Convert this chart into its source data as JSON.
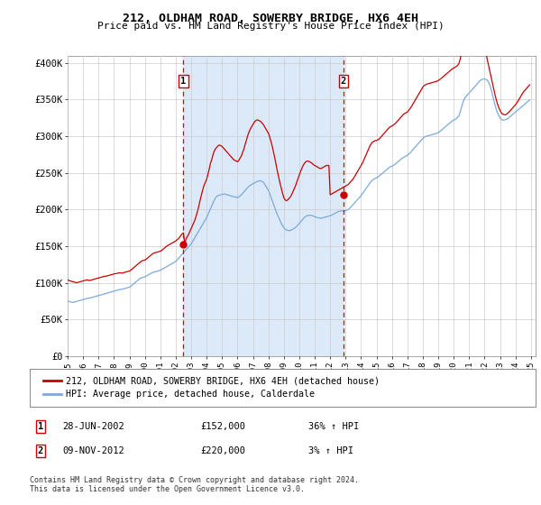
{
  "title": "212, OLDHAM ROAD, SOWERBY BRIDGE, HX6 4EH",
  "subtitle": "Price paid vs. HM Land Registry's House Price Index (HPI)",
  "ylabel_ticks": [
    "£0",
    "£50K",
    "£100K",
    "£150K",
    "£200K",
    "£250K",
    "£300K",
    "£350K",
    "£400K"
  ],
  "ytick_values": [
    0,
    50000,
    100000,
    150000,
    200000,
    250000,
    300000,
    350000,
    400000
  ],
  "ylim": [
    0,
    410000
  ],
  "xlim_start": 1995.0,
  "xlim_end": 2025.3,
  "plot_bg_color": "#ffffff",
  "shade_color": "#dce9f8",
  "hpi_color": "#7aaadd",
  "price_color": "#cc0000",
  "sale1_x": 2002.49,
  "sale1_y": 152000,
  "sale2_x": 2012.86,
  "sale2_y": 220000,
  "legend_label1": "212, OLDHAM ROAD, SOWERBY BRIDGE, HX6 4EH (detached house)",
  "legend_label2": "HPI: Average price, detached house, Calderdale",
  "table_rows": [
    {
      "num": "1",
      "date": "28-JUN-2002",
      "price": "£152,000",
      "change": "36% ↑ HPI"
    },
    {
      "num": "2",
      "date": "09-NOV-2012",
      "price": "£220,000",
      "change": "3% ↑ HPI"
    }
  ],
  "footer": "Contains HM Land Registry data © Crown copyright and database right 2024.\nThis data is licensed under the Open Government Licence v3.0.",
  "vline1_x": 2002.49,
  "vline2_x": 2012.86,
  "hpi_data_x": [
    1995.0,
    1995.083,
    1995.167,
    1995.25,
    1995.333,
    1995.417,
    1995.5,
    1995.583,
    1995.667,
    1995.75,
    1995.833,
    1995.917,
    1996.0,
    1996.083,
    1996.167,
    1996.25,
    1996.333,
    1996.417,
    1996.5,
    1996.583,
    1996.667,
    1996.75,
    1996.833,
    1996.917,
    1997.0,
    1997.083,
    1997.167,
    1997.25,
    1997.333,
    1997.417,
    1997.5,
    1997.583,
    1997.667,
    1997.75,
    1997.833,
    1997.917,
    1998.0,
    1998.083,
    1998.167,
    1998.25,
    1998.333,
    1998.417,
    1998.5,
    1998.583,
    1998.667,
    1998.75,
    1998.833,
    1998.917,
    1999.0,
    1999.083,
    1999.167,
    1999.25,
    1999.333,
    1999.417,
    1999.5,
    1999.583,
    1999.667,
    1999.75,
    1999.833,
    1999.917,
    2000.0,
    2000.083,
    2000.167,
    2000.25,
    2000.333,
    2000.417,
    2000.5,
    2000.583,
    2000.667,
    2000.75,
    2000.833,
    2000.917,
    2001.0,
    2001.083,
    2001.167,
    2001.25,
    2001.333,
    2001.417,
    2001.5,
    2001.583,
    2001.667,
    2001.75,
    2001.833,
    2001.917,
    2002.0,
    2002.083,
    2002.167,
    2002.25,
    2002.333,
    2002.417,
    2002.5,
    2002.583,
    2002.667,
    2002.75,
    2002.833,
    2002.917,
    2003.0,
    2003.083,
    2003.167,
    2003.25,
    2003.333,
    2003.417,
    2003.5,
    2003.583,
    2003.667,
    2003.75,
    2003.833,
    2003.917,
    2004.0,
    2004.083,
    2004.167,
    2004.25,
    2004.333,
    2004.417,
    2004.5,
    2004.583,
    2004.667,
    2004.75,
    2004.833,
    2004.917,
    2005.0,
    2005.083,
    2005.167,
    2005.25,
    2005.333,
    2005.417,
    2005.5,
    2005.583,
    2005.667,
    2005.75,
    2005.833,
    2005.917,
    2006.0,
    2006.083,
    2006.167,
    2006.25,
    2006.333,
    2006.417,
    2006.5,
    2006.583,
    2006.667,
    2006.75,
    2006.833,
    2006.917,
    2007.0,
    2007.083,
    2007.167,
    2007.25,
    2007.333,
    2007.417,
    2007.5,
    2007.583,
    2007.667,
    2007.75,
    2007.833,
    2007.917,
    2008.0,
    2008.083,
    2008.167,
    2008.25,
    2008.333,
    2008.417,
    2008.5,
    2008.583,
    2008.667,
    2008.75,
    2008.833,
    2008.917,
    2009.0,
    2009.083,
    2009.167,
    2009.25,
    2009.333,
    2009.417,
    2009.5,
    2009.583,
    2009.667,
    2009.75,
    2009.833,
    2009.917,
    2010.0,
    2010.083,
    2010.167,
    2010.25,
    2010.333,
    2010.417,
    2010.5,
    2010.583,
    2010.667,
    2010.75,
    2010.833,
    2010.917,
    2011.0,
    2011.083,
    2011.167,
    2011.25,
    2011.333,
    2011.417,
    2011.5,
    2011.583,
    2011.667,
    2011.75,
    2011.833,
    2011.917,
    2012.0,
    2012.083,
    2012.167,
    2012.25,
    2012.333,
    2012.417,
    2012.5,
    2012.583,
    2012.667,
    2012.75,
    2012.833,
    2012.917,
    2013.0,
    2013.083,
    2013.167,
    2013.25,
    2013.333,
    2013.417,
    2013.5,
    2013.583,
    2013.667,
    2013.75,
    2013.833,
    2013.917,
    2014.0,
    2014.083,
    2014.167,
    2014.25,
    2014.333,
    2014.417,
    2014.5,
    2014.583,
    2014.667,
    2014.75,
    2014.833,
    2014.917,
    2015.0,
    2015.083,
    2015.167,
    2015.25,
    2015.333,
    2015.417,
    2015.5,
    2015.583,
    2015.667,
    2015.75,
    2015.833,
    2015.917,
    2016.0,
    2016.083,
    2016.167,
    2016.25,
    2016.333,
    2016.417,
    2016.5,
    2016.583,
    2016.667,
    2016.75,
    2016.833,
    2016.917,
    2017.0,
    2017.083,
    2017.167,
    2017.25,
    2017.333,
    2017.417,
    2017.5,
    2017.583,
    2017.667,
    2017.75,
    2017.833,
    2017.917,
    2018.0,
    2018.083,
    2018.167,
    2018.25,
    2018.333,
    2018.417,
    2018.5,
    2018.583,
    2018.667,
    2018.75,
    2018.833,
    2018.917,
    2019.0,
    2019.083,
    2019.167,
    2019.25,
    2019.333,
    2019.417,
    2019.5,
    2019.583,
    2019.667,
    2019.75,
    2019.833,
    2019.917,
    2020.0,
    2020.083,
    2020.167,
    2020.25,
    2020.333,
    2020.417,
    2020.5,
    2020.583,
    2020.667,
    2020.75,
    2020.833,
    2020.917,
    2021.0,
    2021.083,
    2021.167,
    2021.25,
    2021.333,
    2021.417,
    2021.5,
    2021.583,
    2021.667,
    2021.75,
    2021.833,
    2021.917,
    2022.0,
    2022.083,
    2022.167,
    2022.25,
    2022.333,
    2022.417,
    2022.5,
    2022.583,
    2022.667,
    2022.75,
    2022.833,
    2022.917,
    2023.0,
    2023.083,
    2023.167,
    2023.25,
    2023.333,
    2023.417,
    2023.5,
    2023.583,
    2023.667,
    2023.75,
    2023.833,
    2023.917,
    2024.0,
    2024.083,
    2024.167,
    2024.25,
    2024.333,
    2024.417,
    2024.5,
    2024.583,
    2024.667,
    2024.75,
    2024.833,
    2024.917
  ],
  "hpi_data_y": [
    75000,
    74500,
    74000,
    73500,
    73000,
    73500,
    74000,
    74500,
    75000,
    75500,
    76000,
    76500,
    77000,
    77500,
    78000,
    78500,
    79000,
    79000,
    79500,
    80000,
    80500,
    81000,
    81500,
    82000,
    82500,
    83000,
    83500,
    84000,
    84500,
    85000,
    85500,
    86000,
    86500,
    87000,
    87500,
    88000,
    88500,
    89000,
    89500,
    90000,
    90500,
    91000,
    91000,
    91500,
    92000,
    92500,
    93000,
    93500,
    94000,
    95000,
    96500,
    98000,
    99500,
    101000,
    102500,
    104000,
    105500,
    106500,
    107000,
    107500,
    108000,
    109000,
    110000,
    111000,
    112000,
    113000,
    114000,
    114500,
    115000,
    115500,
    116000,
    116500,
    117000,
    118000,
    119000,
    120000,
    121000,
    122000,
    123000,
    124000,
    125000,
    126000,
    127000,
    128000,
    129000,
    131000,
    133000,
    135000,
    137000,
    139000,
    141000,
    143000,
    145000,
    147000,
    149000,
    151000,
    153000,
    156000,
    159000,
    162000,
    165000,
    168000,
    171000,
    174000,
    177000,
    180000,
    183000,
    186000,
    189000,
    193000,
    197000,
    201000,
    205000,
    209000,
    213000,
    216000,
    218000,
    219000,
    219500,
    220000,
    220500,
    221000,
    221000,
    220500,
    220000,
    219500,
    219000,
    218500,
    218000,
    217500,
    217000,
    216500,
    216000,
    217000,
    218500,
    220000,
    222000,
    224000,
    226000,
    228000,
    230000,
    232000,
    233000,
    234000,
    235000,
    236000,
    237000,
    238000,
    238500,
    239000,
    239000,
    238500,
    237000,
    235000,
    232000,
    229000,
    226000,
    222000,
    217000,
    212000,
    207000,
    202000,
    197000,
    193000,
    189000,
    185000,
    181000,
    178000,
    175000,
    173000,
    172000,
    171500,
    171000,
    171500,
    172000,
    173000,
    174000,
    175500,
    177000,
    179000,
    181000,
    183000,
    185000,
    187000,
    189000,
    190500,
    191500,
    192000,
    192000,
    192000,
    191500,
    191000,
    190000,
    189500,
    189000,
    188500,
    188000,
    188000,
    188500,
    189000,
    189500,
    190000,
    190500,
    191000,
    191500,
    192000,
    193000,
    194000,
    195000,
    196000,
    197000,
    197500,
    198000,
    198000,
    198000,
    198000,
    198500,
    199000,
    200000,
    201500,
    203000,
    205000,
    207000,
    209000,
    211000,
    213000,
    215000,
    217000,
    219000,
    221500,
    224000,
    226500,
    229000,
    231500,
    234000,
    236500,
    238500,
    240000,
    241500,
    242500,
    243000,
    244000,
    245500,
    247000,
    248500,
    250000,
    251500,
    253000,
    254500,
    256000,
    257500,
    258500,
    259000,
    260000,
    261000,
    262500,
    264000,
    265500,
    267000,
    268500,
    270000,
    271000,
    272000,
    273000,
    274000,
    275500,
    277000,
    279000,
    281000,
    283000,
    285000,
    287000,
    289000,
    291000,
    293000,
    295000,
    297000,
    298500,
    299500,
    300000,
    300500,
    301000,
    301500,
    302000,
    302500,
    303000,
    303500,
    304000,
    305000,
    306000,
    307500,
    309000,
    310500,
    312000,
    313500,
    315000,
    316500,
    318000,
    319500,
    321000,
    322000,
    323000,
    324000,
    325500,
    328000,
    333000,
    339000,
    345000,
    350000,
    353000,
    355000,
    357000,
    359000,
    361000,
    363000,
    365000,
    367000,
    369000,
    371000,
    373000,
    375000,
    376500,
    377500,
    378000,
    378000,
    377500,
    376500,
    374000,
    370000,
    364000,
    357000,
    350000,
    343000,
    337000,
    332000,
    328000,
    325000,
    323000,
    322000,
    322000,
    322500,
    323000,
    324000,
    325500,
    327000,
    328500,
    330000,
    331500,
    333000,
    334500,
    336000,
    337500,
    339000,
    340500,
    342000,
    343500,
    345000,
    346500,
    348000,
    349500
  ],
  "price_data_x": [
    1995.0,
    1995.083,
    1995.167,
    1995.25,
    1995.333,
    1995.417,
    1995.5,
    1995.583,
    1995.667,
    1995.75,
    1995.833,
    1995.917,
    1996.0,
    1996.083,
    1996.167,
    1996.25,
    1996.333,
    1996.417,
    1996.5,
    1996.583,
    1996.667,
    1996.75,
    1996.833,
    1996.917,
    1997.0,
    1997.083,
    1997.167,
    1997.25,
    1997.333,
    1997.417,
    1997.5,
    1997.583,
    1997.667,
    1997.75,
    1997.833,
    1997.917,
    1998.0,
    1998.083,
    1998.167,
    1998.25,
    1998.333,
    1998.417,
    1998.5,
    1998.583,
    1998.667,
    1998.75,
    1998.833,
    1998.917,
    1999.0,
    1999.083,
    1999.167,
    1999.25,
    1999.333,
    1999.417,
    1999.5,
    1999.583,
    1999.667,
    1999.75,
    1999.833,
    1999.917,
    2000.0,
    2000.083,
    2000.167,
    2000.25,
    2000.333,
    2000.417,
    2000.5,
    2000.583,
    2000.667,
    2000.75,
    2000.833,
    2000.917,
    2001.0,
    2001.083,
    2001.167,
    2001.25,
    2001.333,
    2001.417,
    2001.5,
    2001.583,
    2001.667,
    2001.75,
    2001.833,
    2001.917,
    2002.0,
    2002.083,
    2002.167,
    2002.25,
    2002.333,
    2002.417,
    2002.5,
    2002.583,
    2002.667,
    2002.75,
    2002.833,
    2002.917,
    2003.0,
    2003.083,
    2003.167,
    2003.25,
    2003.333,
    2003.417,
    2003.5,
    2003.583,
    2003.667,
    2003.75,
    2003.833,
    2003.917,
    2004.0,
    2004.083,
    2004.167,
    2004.25,
    2004.333,
    2004.417,
    2004.5,
    2004.583,
    2004.667,
    2004.75,
    2004.833,
    2004.917,
    2005.0,
    2005.083,
    2005.167,
    2005.25,
    2005.333,
    2005.417,
    2005.5,
    2005.583,
    2005.667,
    2005.75,
    2005.833,
    2005.917,
    2006.0,
    2006.083,
    2006.167,
    2006.25,
    2006.333,
    2006.417,
    2006.5,
    2006.583,
    2006.667,
    2006.75,
    2006.833,
    2006.917,
    2007.0,
    2007.083,
    2007.167,
    2007.25,
    2007.333,
    2007.417,
    2007.5,
    2007.583,
    2007.667,
    2007.75,
    2007.833,
    2007.917,
    2008.0,
    2008.083,
    2008.167,
    2008.25,
    2008.333,
    2008.417,
    2008.5,
    2008.583,
    2008.667,
    2008.75,
    2008.833,
    2008.917,
    2009.0,
    2009.083,
    2009.167,
    2009.25,
    2009.333,
    2009.417,
    2009.5,
    2009.583,
    2009.667,
    2009.75,
    2009.833,
    2009.917,
    2010.0,
    2010.083,
    2010.167,
    2010.25,
    2010.333,
    2010.417,
    2010.5,
    2010.583,
    2010.667,
    2010.75,
    2010.833,
    2010.917,
    2011.0,
    2011.083,
    2011.167,
    2011.25,
    2011.333,
    2011.417,
    2011.5,
    2011.583,
    2011.667,
    2011.75,
    2011.833,
    2011.917,
    2012.0,
    2012.083,
    2012.167,
    2012.25,
    2012.333,
    2012.417,
    2012.5,
    2012.583,
    2012.667,
    2012.75,
    2012.833,
    2012.917,
    2013.0,
    2013.083,
    2013.167,
    2013.25,
    2013.333,
    2013.417,
    2013.5,
    2013.583,
    2013.667,
    2013.75,
    2013.833,
    2013.917,
    2014.0,
    2014.083,
    2014.167,
    2014.25,
    2014.333,
    2014.417,
    2014.5,
    2014.583,
    2014.667,
    2014.75,
    2014.833,
    2014.917,
    2015.0,
    2015.083,
    2015.167,
    2015.25,
    2015.333,
    2015.417,
    2015.5,
    2015.583,
    2015.667,
    2015.75,
    2015.833,
    2015.917,
    2016.0,
    2016.083,
    2016.167,
    2016.25,
    2016.333,
    2016.417,
    2016.5,
    2016.583,
    2016.667,
    2016.75,
    2016.833,
    2016.917,
    2017.0,
    2017.083,
    2017.167,
    2017.25,
    2017.333,
    2017.417,
    2017.5,
    2017.583,
    2017.667,
    2017.75,
    2017.833,
    2017.917,
    2018.0,
    2018.083,
    2018.167,
    2018.25,
    2018.333,
    2018.417,
    2018.5,
    2018.583,
    2018.667,
    2018.75,
    2018.833,
    2018.917,
    2019.0,
    2019.083,
    2019.167,
    2019.25,
    2019.333,
    2019.417,
    2019.5,
    2019.583,
    2019.667,
    2019.75,
    2019.833,
    2019.917,
    2020.0,
    2020.083,
    2020.167,
    2020.25,
    2020.333,
    2020.417,
    2020.5,
    2020.583,
    2020.667,
    2020.75,
    2020.833,
    2020.917,
    2021.0,
    2021.083,
    2021.167,
    2021.25,
    2021.333,
    2021.417,
    2021.5,
    2021.583,
    2021.667,
    2021.75,
    2021.833,
    2021.917,
    2022.0,
    2022.083,
    2022.167,
    2022.25,
    2022.333,
    2022.417,
    2022.5,
    2022.583,
    2022.667,
    2022.75,
    2022.833,
    2022.917,
    2023.0,
    2023.083,
    2023.167,
    2023.25,
    2023.333,
    2023.417,
    2023.5,
    2023.583,
    2023.667,
    2023.75,
    2023.833,
    2023.917,
    2024.0,
    2024.083,
    2024.167,
    2024.25,
    2024.333,
    2024.417,
    2024.5,
    2024.583,
    2024.667,
    2024.75,
    2024.833,
    2024.917
  ],
  "price_data_y": [
    104000,
    103000,
    102500,
    102000,
    101500,
    101000,
    100500,
    100000,
    100500,
    101000,
    101500,
    102000,
    102500,
    103000,
    103500,
    104000,
    103500,
    103000,
    103500,
    104000,
    104500,
    105000,
    105500,
    106000,
    106500,
    107000,
    107500,
    108000,
    108500,
    109000,
    109000,
    109500,
    110000,
    110500,
    111000,
    111500,
    112000,
    112500,
    112500,
    113000,
    113500,
    113500,
    113000,
    113500,
    114000,
    114500,
    115000,
    115500,
    116000,
    117000,
    118500,
    120000,
    121500,
    123000,
    124500,
    126000,
    127500,
    129000,
    130000,
    130500,
    131000,
    132000,
    133500,
    135000,
    136500,
    138000,
    139500,
    140500,
    141000,
    141500,
    142000,
    142500,
    143000,
    144000,
    145500,
    147000,
    148500,
    150000,
    151000,
    152000,
    153000,
    154000,
    155000,
    156000,
    157000,
    158500,
    160000,
    162000,
    164500,
    167000,
    168000,
    152000,
    160000,
    163000,
    166000,
    170000,
    174000,
    178000,
    182000,
    186000,
    192000,
    198000,
    205000,
    213000,
    220000,
    227000,
    233000,
    237000,
    241000,
    248000,
    255000,
    263000,
    268000,
    275000,
    280000,
    283000,
    285000,
    287000,
    288000,
    287000,
    286000,
    284000,
    282000,
    280000,
    278000,
    276000,
    274000,
    272000,
    270000,
    268000,
    267000,
    266000,
    265000,
    267000,
    270000,
    273000,
    278000,
    283000,
    289000,
    295000,
    301000,
    306000,
    310000,
    313000,
    316000,
    319000,
    321000,
    322000,
    322000,
    321000,
    320000,
    318000,
    316000,
    313000,
    310000,
    307000,
    304000,
    299000,
    293000,
    286000,
    278000,
    270000,
    261000,
    252000,
    244000,
    236000,
    229000,
    222000,
    216000,
    213000,
    212000,
    213000,
    215000,
    217000,
    220000,
    224000,
    228000,
    232000,
    237000,
    242000,
    247000,
    252000,
    256000,
    260000,
    263000,
    265000,
    266000,
    266000,
    265000,
    264000,
    263000,
    261000,
    260000,
    259000,
    258000,
    257000,
    256000,
    256000,
    257000,
    258000,
    259000,
    260000,
    260000,
    260000,
    220000,
    221000,
    222000,
    223000,
    224000,
    225000,
    226000,
    227000,
    228000,
    229000,
    230000,
    231000,
    232000,
    233000,
    234000,
    236000,
    238000,
    240000,
    242000,
    245000,
    248000,
    251000,
    254000,
    257000,
    260000,
    263000,
    267000,
    271000,
    275000,
    279000,
    283000,
    287000,
    290000,
    292000,
    293000,
    294000,
    294000,
    295000,
    296000,
    298000,
    300000,
    302000,
    304000,
    306000,
    308000,
    310000,
    312000,
    313000,
    314000,
    315000,
    316500,
    318000,
    320000,
    322000,
    324000,
    326000,
    328000,
    330000,
    331000,
    332000,
    333000,
    335000,
    337500,
    340000,
    343000,
    346000,
    349000,
    352000,
    355000,
    358000,
    361000,
    364000,
    367000,
    369000,
    370000,
    371000,
    371500,
    372000,
    372500,
    373000,
    373500,
    374000,
    374500,
    375000,
    376000,
    377000,
    378500,
    380000,
    381500,
    383000,
    384500,
    386000,
    387500,
    389000,
    390500,
    392000,
    393000,
    394000,
    395000,
    396500,
    399000,
    405000,
    413000,
    421000,
    428000,
    433000,
    436000,
    438000,
    440000,
    441000,
    442000,
    443000,
    444000,
    444500,
    444500,
    444000,
    442000,
    439000,
    434000,
    428000,
    421000,
    413000,
    405000,
    397000,
    389000,
    381000,
    373000,
    365000,
    357000,
    350000,
    344000,
    339000,
    335000,
    332000,
    330000,
    329500,
    329000,
    330000,
    331500,
    333000,
    335000,
    337000,
    339000,
    341000,
    343000,
    345500,
    348000,
    351000,
    354000,
    357000,
    360000,
    362000,
    364000,
    366000,
    368000,
    370000
  ]
}
